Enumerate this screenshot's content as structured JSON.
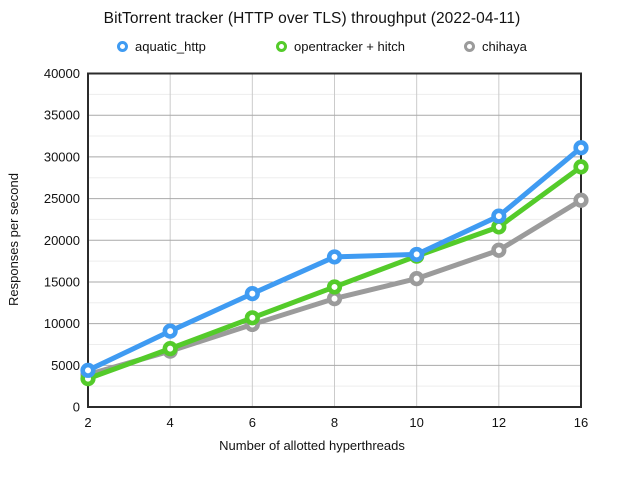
{
  "chart_data": {
    "type": "line",
    "title": "BitTorrent tracker (HTTP over TLS) throughput (2022-04-11)",
    "xlabel": "Number of allotted hyperthreads",
    "ylabel": "Responses per second",
    "categories": [
      2,
      4,
      6,
      8,
      10,
      12,
      16
    ],
    "series": [
      {
        "name": "aquatic_http",
        "color": "#3f9bf2",
        "values": [
          4400,
          9100,
          13600,
          18000,
          18300,
          22900,
          31100
        ]
      },
      {
        "name": "opentracker + hitch",
        "color": "#54cb2a",
        "values": [
          3400,
          7000,
          10700,
          14400,
          18100,
          21600,
          28800
        ]
      },
      {
        "name": "chihaya",
        "color": "#9b9b9b",
        "values": [
          3900,
          6700,
          9900,
          13000,
          15400,
          18800,
          24800
        ]
      }
    ],
    "ylim": [
      0,
      40000
    ],
    "y_major_step": 5000,
    "y_minor_step": 2500,
    "grid": true,
    "legend_position": "top",
    "marker": "open-circle"
  },
  "colors": {
    "background": "#ffffff",
    "frame": "#2b2b2b",
    "grid_major": "#a9a9a9",
    "grid_minor": "#ededed",
    "grid_vertical": "#cbcbcb",
    "text": "#121212"
  }
}
